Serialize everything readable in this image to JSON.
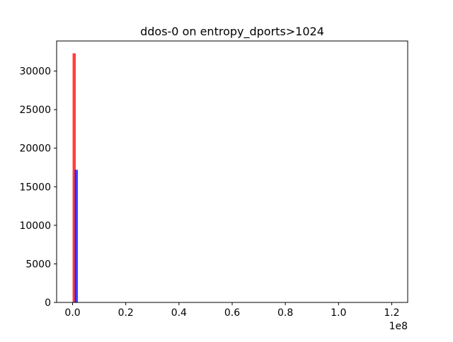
{
  "chart_data": {
    "type": "bar",
    "title": "ddos-0 on entropy_dports>1024",
    "xlabel": "",
    "ylabel": "",
    "x_offset_text": "1e8",
    "xlim": [
      -6000000,
      126000000
    ],
    "ylim": [
      0,
      33900
    ],
    "x_ticks": [
      {
        "value": 0,
        "label": "0.0"
      },
      {
        "value": 20000000,
        "label": "0.2"
      },
      {
        "value": 40000000,
        "label": "0.4"
      },
      {
        "value": 60000000,
        "label": "0.6"
      },
      {
        "value": 80000000,
        "label": "0.8"
      },
      {
        "value": 100000000,
        "label": "1.0"
      },
      {
        "value": 120000000,
        "label": "1.2"
      }
    ],
    "y_ticks": [
      {
        "value": 0,
        "label": "0"
      },
      {
        "value": 5000,
        "label": "5000"
      },
      {
        "value": 10000,
        "label": "10000"
      },
      {
        "value": 15000,
        "label": "15000"
      },
      {
        "value": 20000,
        "label": "20000"
      },
      {
        "value": 25000,
        "label": "25000"
      },
      {
        "value": 30000,
        "label": "30000"
      }
    ],
    "grid": false,
    "legend": "none",
    "series": [
      {
        "color": "#ff0000",
        "opacity": 0.75,
        "bins": [
          {
            "x0": 0,
            "x1": 1200000,
            "count": 32300
          }
        ]
      },
      {
        "color": "#0000ff",
        "opacity": 0.75,
        "bins": [
          {
            "x0": 800000,
            "x1": 2000000,
            "count": 17200
          }
        ]
      }
    ]
  }
}
